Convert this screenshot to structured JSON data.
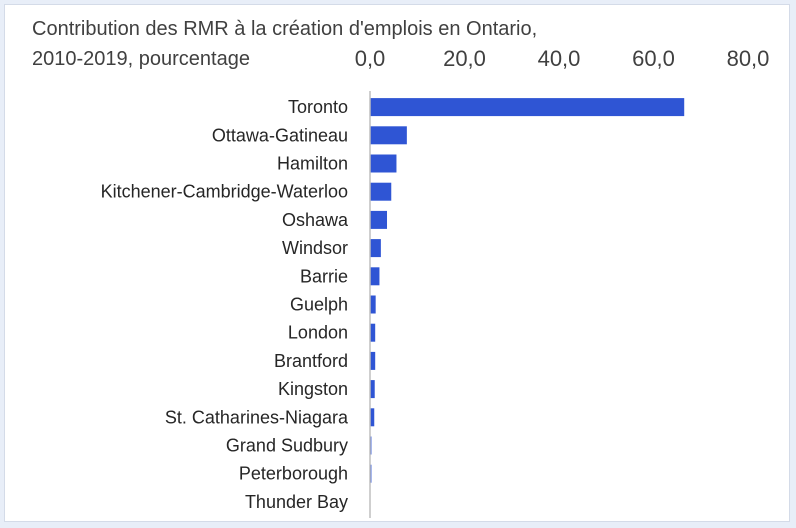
{
  "chart_data": {
    "type": "bar",
    "orientation": "horizontal",
    "title_lines": [
      "Contribution des RMR à la création d'emplois en Ontario,",
      "2010-2019, pourcentage"
    ],
    "xlabel": "",
    "ylabel": "",
    "xlim": [
      0,
      80
    ],
    "x_ticks": [
      0,
      20,
      40,
      60,
      80
    ],
    "x_tick_labels": [
      "0,0",
      "20,0",
      "40,0",
      "60,0",
      "80,0"
    ],
    "x_axis_position": "top",
    "grid": false,
    "legend": "none",
    "bar_color": "#2f55d4",
    "categories": [
      "Toronto",
      "Ottawa-Gatineau",
      "Hamilton",
      "Kitchener-Cambridge-Waterloo",
      "Oshawa",
      "Windsor",
      "Barrie",
      "Guelph",
      "London",
      "Brantford",
      "Kingston",
      "St. Catharines-Niagara",
      "Grand Sudbury",
      "Peterborough",
      "Thunder Bay"
    ],
    "values": [
      66.5,
      7.8,
      5.6,
      4.5,
      3.6,
      2.3,
      2.0,
      1.2,
      1.1,
      1.1,
      1.0,
      0.9,
      0.3,
      0.3,
      0.0
    ]
  }
}
